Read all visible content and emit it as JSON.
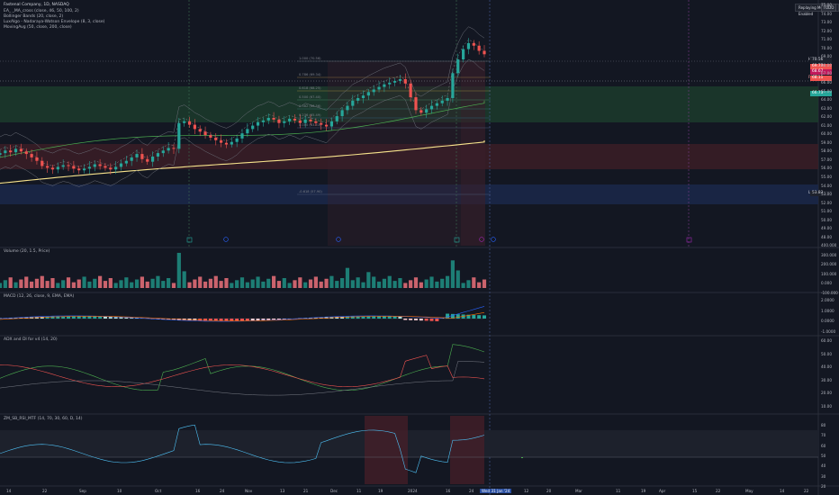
{
  "legend": {
    "title": "Fastenal Company, 1D, NASDAQ",
    "line1": "EA_ _MA_cross (close, 46, 50, 100, 2)",
    "line2": "Bollinger Bands (20, close, 2)",
    "line3": "LuxAlgo - Nadaraya-Watson Envelope (8, 3, close)",
    "line4": "MovingAvg (50, close, 200, close)"
  },
  "badges": {
    "replay": "Replaying Mode Enabled",
    "button": "TODO"
  },
  "price_tags": {
    "high_label": "High",
    "high_value": "70.56",
    "t1": "69.77",
    "t2": "68.67",
    "current_label": "FAST",
    "current_value": "68.11",
    "t3": "66.73",
    "low_label": "Low",
    "low_value": "53.83"
  },
  "y_axis": [
    "75.00",
    "74.00",
    "73.00",
    "72.00",
    "71.00",
    "70.00",
    "69.00",
    "68.00",
    "67.00",
    "66.00",
    "65.00",
    "64.00",
    "63.00",
    "62.00",
    "61.00",
    "60.00",
    "59.00",
    "58.00",
    "57.00",
    "56.00",
    "55.00",
    "54.00",
    "53.00",
    "52.00",
    "51.00",
    "50.00",
    "49.00",
    "48.00"
  ],
  "fib_labels": [
    "1.000 (70.56)",
    "0.786 (69.34)",
    "0.618 (68.25)",
    "0.500 (67.40)",
    "0.382 (66.56)",
    "0.236 (65.49)",
    "0.000 (63.53)",
    "-0.618 (57.90)"
  ],
  "panes": {
    "volume": "Volume (20, 1.5, Price)",
    "macd": "MACD (12, 26, close, 9, EMA, EMA)",
    "adx": "ADX and DI for v4 (14, 20)",
    "rsi": "ZM_SB_RSI_MTF (14, 70, 30, 60, D, 14)"
  },
  "vol_axis": [
    "400.000",
    "300.000",
    "200.000",
    "100.000",
    "0.000",
    "-100.000"
  ],
  "macd_axis": [
    "2.0000",
    "1.0000",
    "0.0000",
    "-1.0000"
  ],
  "adx_axis": [
    "60.00",
    "50.00",
    "40.00",
    "30.00",
    "20.00",
    "10.00"
  ],
  "rsi_axis": [
    "80",
    "70",
    "60",
    "50",
    "40",
    "30",
    "20"
  ],
  "x_axis": [
    "14",
    "22",
    "Sep",
    "10",
    "Oct",
    "16",
    "24",
    "Nov",
    "13",
    "21",
    "Dec",
    "11",
    "19",
    "2024",
    "16",
    "24",
    "Wed 31 Jan '24",
    "12",
    "20",
    "Mar",
    "11",
    "19",
    "Apr",
    "15",
    "22",
    "May",
    "14",
    "22"
  ]
}
